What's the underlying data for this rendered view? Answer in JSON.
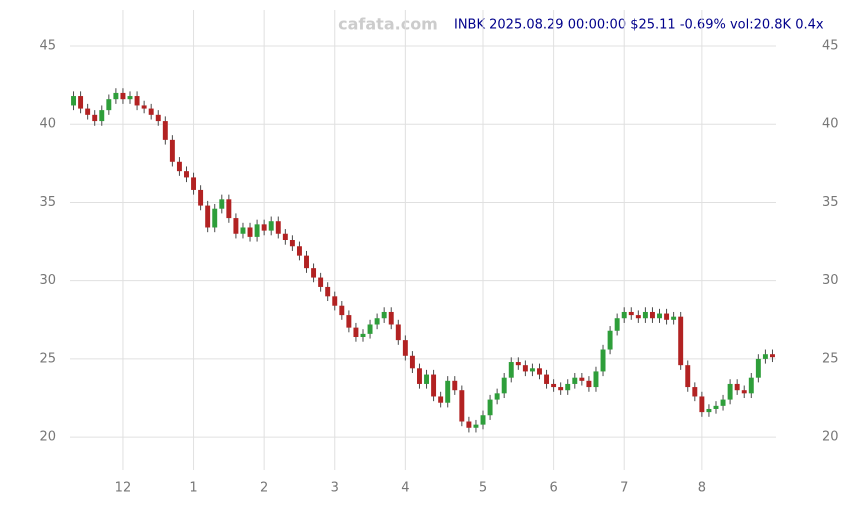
{
  "chart_data": {
    "type": "candlestick",
    "title": "INBK 2025.08.29 00:00:00 $25.11 -0.69% vol:20.8K 0.4x",
    "watermark": "cafata.com",
    "up_color": "#2e9e3a",
    "down_color": "#b22222",
    "wick_color": "#4a4a4a",
    "grid": true,
    "ylim": [
      17.9,
      47.3
    ],
    "yticks": [
      20,
      25,
      30,
      35,
      40,
      45
    ],
    "categories": [
      null,
      null,
      null,
      null,
      null,
      null,
      null,
      "12",
      null,
      null,
      null,
      null,
      null,
      null,
      null,
      null,
      null,
      "1",
      null,
      null,
      null,
      null,
      null,
      null,
      null,
      null,
      null,
      "2",
      null,
      null,
      null,
      null,
      null,
      null,
      null,
      null,
      null,
      "3",
      null,
      null,
      null,
      null,
      null,
      null,
      null,
      null,
      null,
      "4",
      null,
      null,
      null,
      null,
      null,
      null,
      null,
      null,
      null,
      null,
      "5",
      null,
      null,
      null,
      null,
      null,
      null,
      null,
      null,
      null,
      "6",
      null,
      null,
      null,
      null,
      null,
      null,
      null,
      null,
      null,
      "7",
      null,
      null,
      null,
      null,
      null,
      null,
      null,
      null,
      null,
      null,
      "8",
      null,
      null,
      null,
      null,
      null,
      null,
      null,
      null,
      null,
      null
    ],
    "open": [
      41.2,
      41.8,
      41.0,
      40.6,
      40.2,
      40.9,
      41.6,
      42.0,
      41.6,
      41.8,
      41.2,
      41.0,
      40.6,
      40.2,
      39.0,
      37.6,
      37.0,
      36.6,
      35.8,
      34.8,
      33.4,
      34.6,
      35.2,
      34.0,
      33.0,
      33.4,
      32.8,
      33.6,
      33.2,
      33.8,
      33.0,
      32.6,
      32.2,
      31.6,
      30.8,
      30.2,
      29.6,
      29.0,
      28.4,
      27.8,
      27.0,
      26.4,
      26.6,
      27.2,
      27.6,
      28.0,
      27.2,
      26.2,
      25.2,
      24.4,
      23.4,
      24.0,
      22.6,
      22.2,
      23.6,
      23.0,
      21.0,
      20.6,
      20.8,
      21.4,
      22.4,
      22.8,
      23.8,
      24.8,
      24.6,
      24.2,
      24.4,
      24.0,
      23.4,
      23.2,
      23.0,
      23.4,
      23.8,
      23.6,
      23.2,
      24.2,
      25.6,
      26.8,
      27.6,
      28.0,
      27.8,
      27.6,
      28.0,
      27.6,
      27.9,
      27.5,
      27.7,
      24.6,
      23.2,
      22.6,
      21.6,
      21.8,
      22.0,
      22.4,
      23.4,
      23.0,
      22.8,
      23.8,
      25.0,
      25.3
    ],
    "high": [
      42.1,
      42.1,
      41.3,
      40.9,
      41.2,
      41.9,
      42.3,
      42.3,
      42.1,
      42.1,
      41.5,
      41.3,
      40.9,
      40.5,
      39.3,
      37.9,
      37.3,
      36.9,
      36.1,
      35.1,
      34.9,
      35.5,
      35.5,
      34.3,
      33.7,
      33.7,
      33.9,
      33.9,
      34.1,
      34.1,
      33.3,
      32.9,
      32.5,
      31.9,
      31.1,
      30.5,
      29.9,
      29.3,
      28.7,
      28.1,
      27.3,
      26.9,
      27.5,
      27.9,
      28.3,
      28.3,
      27.5,
      26.5,
      25.5,
      24.7,
      24.3,
      24.3,
      22.9,
      23.9,
      23.9,
      23.3,
      21.3,
      21.1,
      21.7,
      22.7,
      23.1,
      24.1,
      25.1,
      25.1,
      24.9,
      24.7,
      24.7,
      24.3,
      23.7,
      23.5,
      23.7,
      24.1,
      24.1,
      23.9,
      24.5,
      25.9,
      27.1,
      27.9,
      28.3,
      28.3,
      28.1,
      28.3,
      28.3,
      28.2,
      28.2,
      28.0,
      28.0,
      24.9,
      23.5,
      22.9,
      22.1,
      22.3,
      22.7,
      23.7,
      23.7,
      23.3,
      24.1,
      25.3,
      25.6,
      25.6
    ],
    "low": [
      40.9,
      40.7,
      40.3,
      39.9,
      39.9,
      40.6,
      41.3,
      41.3,
      41.3,
      40.9,
      40.7,
      40.3,
      39.9,
      38.7,
      37.3,
      36.7,
      36.3,
      35.5,
      34.5,
      33.1,
      33.1,
      34.3,
      33.7,
      32.7,
      32.7,
      32.5,
      32.5,
      32.9,
      32.9,
      32.7,
      32.3,
      31.9,
      31.3,
      30.5,
      29.9,
      29.3,
      28.7,
      28.1,
      27.5,
      26.7,
      26.1,
      26.1,
      26.3,
      26.9,
      27.3,
      26.9,
      25.9,
      24.9,
      24.1,
      23.1,
      23.1,
      22.3,
      21.9,
      21.9,
      22.7,
      20.7,
      20.3,
      20.3,
      20.5,
      21.1,
      22.1,
      22.5,
      23.5,
      24.3,
      23.9,
      23.9,
      23.7,
      23.1,
      22.9,
      22.7,
      22.7,
      23.1,
      23.3,
      22.9,
      22.9,
      23.9,
      25.3,
      26.5,
      27.3,
      27.5,
      27.3,
      27.3,
      27.3,
      27.3,
      27.2,
      27.2,
      24.3,
      22.9,
      22.3,
      21.3,
      21.3,
      21.5,
      21.7,
      22.1,
      22.7,
      22.5,
      22.5,
      23.5,
      24.7,
      24.8
    ],
    "close": [
      41.8,
      41.0,
      40.6,
      40.2,
      40.9,
      41.6,
      42.0,
      41.6,
      41.8,
      41.2,
      41.0,
      40.6,
      40.2,
      39.0,
      37.6,
      37.0,
      36.6,
      35.8,
      34.8,
      33.4,
      34.6,
      35.2,
      34.0,
      33.0,
      33.4,
      32.8,
      33.6,
      33.2,
      33.8,
      33.0,
      32.6,
      32.2,
      31.6,
      30.8,
      30.2,
      29.6,
      29.0,
      28.4,
      27.8,
      27.0,
      26.4,
      26.6,
      27.2,
      27.6,
      28.0,
      27.2,
      26.2,
      25.2,
      24.4,
      23.4,
      24.0,
      22.6,
      22.2,
      23.6,
      23.0,
      21.0,
      20.6,
      20.8,
      21.4,
      22.4,
      22.8,
      23.8,
      24.8,
      24.6,
      24.2,
      24.4,
      24.0,
      23.4,
      23.2,
      23.0,
      23.4,
      23.8,
      23.6,
      23.2,
      24.2,
      25.6,
      26.8,
      27.6,
      28.0,
      27.8,
      27.6,
      28.0,
      27.6,
      27.9,
      27.5,
      27.7,
      24.6,
      23.2,
      22.6,
      21.6,
      21.8,
      22.0,
      22.4,
      23.4,
      23.0,
      22.8,
      23.8,
      25.0,
      25.3,
      25.11
    ]
  }
}
